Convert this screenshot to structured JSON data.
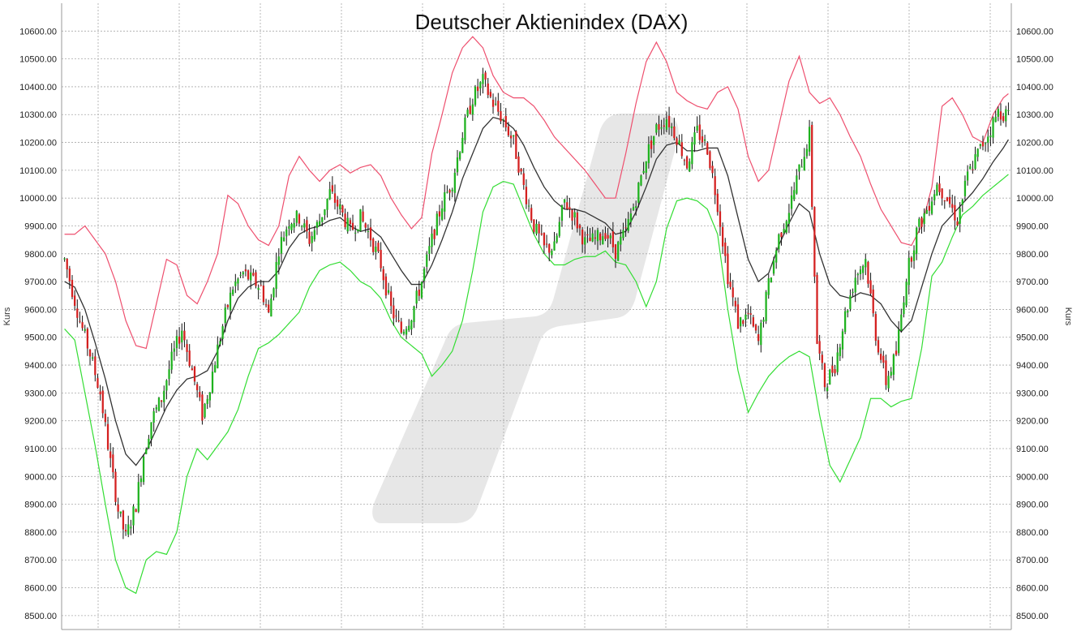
{
  "chart_data": {
    "type": "candlestick",
    "title": "Deutscher Aktienindex (DAX)",
    "ylabel_left": "Kurs",
    "ylabel_right": "Kurs",
    "ylim": [
      8450,
      10700
    ],
    "yticks": [
      "8500.00",
      "8600.00",
      "8700.00",
      "8800.00",
      "8900.00",
      "9000.00",
      "9100.00",
      "9200.00",
      "9300.00",
      "9400.00",
      "9500.00",
      "9600.00",
      "9700.00",
      "9800.00",
      "9900.00",
      "10000.00",
      "10100.00",
      "10200.00",
      "10300.00",
      "10400.00",
      "10500.00",
      "10600.00"
    ],
    "grid": true,
    "colors": {
      "up": "#1fb21f",
      "down": "#d42020",
      "wick": "#111111",
      "upper_band": "#ee4f6e",
      "middle_band": "#333333",
      "lower_band": "#33dd33",
      "grid": "#a9a9a9",
      "watermark": "#e7e7e7"
    },
    "anchors": [
      [
        0,
        9780
      ],
      [
        6,
        9560
      ],
      [
        10,
        9440
      ],
      [
        14,
        9300
      ],
      [
        18,
        9050
      ],
      [
        21,
        8880
      ],
      [
        24,
        8780
      ],
      [
        28,
        8900
      ],
      [
        31,
        9080
      ],
      [
        34,
        9200
      ],
      [
        38,
        9280
      ],
      [
        42,
        9420
      ],
      [
        46,
        9530
      ],
      [
        50,
        9380
      ],
      [
        54,
        9220
      ],
      [
        57,
        9330
      ],
      [
        60,
        9460
      ],
      [
        63,
        9580
      ],
      [
        66,
        9680
      ],
      [
        70,
        9730
      ],
      [
        74,
        9700
      ],
      [
        77,
        9680
      ],
      [
        80,
        9580
      ],
      [
        84,
        9820
      ],
      [
        88,
        9920
      ],
      [
        92,
        9930
      ],
      [
        96,
        9850
      ],
      [
        100,
        9920
      ],
      [
        104,
        10020
      ],
      [
        108,
        9960
      ],
      [
        112,
        9880
      ],
      [
        116,
        9930
      ],
      [
        120,
        9860
      ],
      [
        124,
        9760
      ],
      [
        128,
        9600
      ],
      [
        132,
        9520
      ],
      [
        136,
        9580
      ],
      [
        140,
        9700
      ],
      [
        144,
        9850
      ],
      [
        148,
        9980
      ],
      [
        152,
        10060
      ],
      [
        156,
        10230
      ],
      [
        160,
        10360
      ],
      [
        164,
        10420
      ],
      [
        168,
        10340
      ],
      [
        172,
        10280
      ],
      [
        176,
        10200
      ],
      [
        180,
        10040
      ],
      [
        184,
        9900
      ],
      [
        188,
        9820
      ],
      [
        192,
        9820
      ],
      [
        196,
        9990
      ],
      [
        200,
        9930
      ],
      [
        204,
        9840
      ],
      [
        208,
        9850
      ],
      [
        212,
        9880
      ],
      [
        216,
        9810
      ],
      [
        220,
        9880
      ],
      [
        224,
        10000
      ],
      [
        228,
        10150
      ],
      [
        232,
        10250
      ],
      [
        236,
        10290
      ],
      [
        240,
        10220
      ],
      [
        244,
        10120
      ],
      [
        248,
        10240
      ],
      [
        252,
        10180
      ],
      [
        256,
        9980
      ],
      [
        260,
        9720
      ],
      [
        264,
        9550
      ],
      [
        268,
        9580
      ],
      [
        272,
        9480
      ],
      [
        276,
        9690
      ],
      [
        280,
        9860
      ],
      [
        284,
        9960
      ],
      [
        288,
        10100
      ],
      [
        292,
        10230
      ],
      [
        295,
        9480
      ],
      [
        298,
        9330
      ],
      [
        302,
        9400
      ],
      [
        306,
        9580
      ],
      [
        310,
        9720
      ],
      [
        314,
        9780
      ],
      [
        318,
        9510
      ],
      [
        322,
        9340
      ],
      [
        326,
        9440
      ],
      [
        330,
        9720
      ],
      [
        334,
        9880
      ],
      [
        338,
        9960
      ],
      [
        342,
        10050
      ],
      [
        346,
        10000
      ],
      [
        350,
        9920
      ],
      [
        354,
        10080
      ],
      [
        358,
        10160
      ],
      [
        362,
        10230
      ],
      [
        366,
        10310
      ],
      [
        370,
        10300
      ]
    ],
    "upper_band": [
      [
        0,
        9870
      ],
      [
        4,
        9870
      ],
      [
        8,
        9900
      ],
      [
        12,
        9850
      ],
      [
        16,
        9800
      ],
      [
        20,
        9700
      ],
      [
        24,
        9560
      ],
      [
        28,
        9470
      ],
      [
        32,
        9460
      ],
      [
        36,
        9620
      ],
      [
        40,
        9780
      ],
      [
        44,
        9760
      ],
      [
        48,
        9650
      ],
      [
        52,
        9620
      ],
      [
        56,
        9700
      ],
      [
        60,
        9800
      ],
      [
        64,
        10010
      ],
      [
        68,
        9980
      ],
      [
        72,
        9900
      ],
      [
        76,
        9850
      ],
      [
        80,
        9830
      ],
      [
        84,
        9900
      ],
      [
        88,
        10080
      ],
      [
        92,
        10150
      ],
      [
        96,
        10100
      ],
      [
        100,
        10060
      ],
      [
        104,
        10100
      ],
      [
        108,
        10120
      ],
      [
        112,
        10090
      ],
      [
        116,
        10110
      ],
      [
        120,
        10120
      ],
      [
        124,
        10080
      ],
      [
        128,
        10000
      ],
      [
        132,
        9940
      ],
      [
        136,
        9890
      ],
      [
        140,
        9930
      ],
      [
        144,
        10160
      ],
      [
        148,
        10300
      ],
      [
        152,
        10450
      ],
      [
        156,
        10540
      ],
      [
        160,
        10580
      ],
      [
        164,
        10540
      ],
      [
        168,
        10440
      ],
      [
        172,
        10380
      ],
      [
        176,
        10360
      ],
      [
        180,
        10360
      ],
      [
        184,
        10330
      ],
      [
        188,
        10280
      ],
      [
        192,
        10220
      ],
      [
        196,
        10180
      ],
      [
        200,
        10140
      ],
      [
        204,
        10100
      ],
      [
        208,
        10050
      ],
      [
        212,
        10000
      ],
      [
        216,
        10000
      ],
      [
        220,
        10160
      ],
      [
        224,
        10340
      ],
      [
        228,
        10490
      ],
      [
        232,
        10560
      ],
      [
        236,
        10490
      ],
      [
        240,
        10380
      ],
      [
        244,
        10350
      ],
      [
        248,
        10330
      ],
      [
        252,
        10320
      ],
      [
        256,
        10380
      ],
      [
        260,
        10400
      ],
      [
        264,
        10320
      ],
      [
        268,
        10150
      ],
      [
        272,
        10060
      ],
      [
        276,
        10100
      ],
      [
        280,
        10260
      ],
      [
        284,
        10420
      ],
      [
        288,
        10510
      ],
      [
        292,
        10380
      ],
      [
        296,
        10340
      ],
      [
        300,
        10360
      ],
      [
        304,
        10300
      ],
      [
        308,
        10220
      ],
      [
        312,
        10150
      ],
      [
        316,
        10050
      ],
      [
        320,
        9960
      ],
      [
        324,
        9900
      ],
      [
        328,
        9840
      ],
      [
        332,
        9830
      ],
      [
        336,
        9900
      ],
      [
        340,
        10040
      ],
      [
        344,
        10330
      ],
      [
        348,
        10360
      ],
      [
        352,
        10300
      ],
      [
        356,
        10220
      ],
      [
        360,
        10200
      ],
      [
        364,
        10300
      ],
      [
        368,
        10360
      ],
      [
        372,
        10390
      ]
    ],
    "middle_band": [
      [
        0,
        9700
      ],
      [
        4,
        9680
      ],
      [
        8,
        9600
      ],
      [
        12,
        9480
      ],
      [
        16,
        9350
      ],
      [
        20,
        9200
      ],
      [
        24,
        9080
      ],
      [
        28,
        9040
      ],
      [
        32,
        9090
      ],
      [
        36,
        9170
      ],
      [
        40,
        9250
      ],
      [
        44,
        9310
      ],
      [
        48,
        9350
      ],
      [
        52,
        9360
      ],
      [
        56,
        9380
      ],
      [
        60,
        9450
      ],
      [
        64,
        9560
      ],
      [
        68,
        9640
      ],
      [
        72,
        9680
      ],
      [
        76,
        9700
      ],
      [
        80,
        9700
      ],
      [
        84,
        9740
      ],
      [
        88,
        9820
      ],
      [
        92,
        9870
      ],
      [
        96,
        9890
      ],
      [
        100,
        9900
      ],
      [
        104,
        9920
      ],
      [
        108,
        9930
      ],
      [
        112,
        9900
      ],
      [
        116,
        9880
      ],
      [
        120,
        9890
      ],
      [
        124,
        9860
      ],
      [
        128,
        9800
      ],
      [
        132,
        9740
      ],
      [
        136,
        9690
      ],
      [
        140,
        9690
      ],
      [
        144,
        9760
      ],
      [
        148,
        9850
      ],
      [
        152,
        9950
      ],
      [
        156,
        10070
      ],
      [
        160,
        10160
      ],
      [
        164,
        10250
      ],
      [
        168,
        10290
      ],
      [
        172,
        10280
      ],
      [
        176,
        10250
      ],
      [
        180,
        10190
      ],
      [
        184,
        10110
      ],
      [
        188,
        10040
      ],
      [
        192,
        9990
      ],
      [
        196,
        9960
      ],
      [
        200,
        9960
      ],
      [
        204,
        9950
      ],
      [
        208,
        9930
      ],
      [
        212,
        9910
      ],
      [
        216,
        9870
      ],
      [
        220,
        9880
      ],
      [
        224,
        9950
      ],
      [
        228,
        10040
      ],
      [
        232,
        10140
      ],
      [
        236,
        10190
      ],
      [
        240,
        10200
      ],
      [
        244,
        10170
      ],
      [
        248,
        10170
      ],
      [
        252,
        10180
      ],
      [
        256,
        10180
      ],
      [
        260,
        10080
      ],
      [
        264,
        9930
      ],
      [
        268,
        9780
      ],
      [
        272,
        9700
      ],
      [
        276,
        9730
      ],
      [
        280,
        9830
      ],
      [
        284,
        9910
      ],
      [
        288,
        9980
      ],
      [
        292,
        9950
      ],
      [
        296,
        9800
      ],
      [
        300,
        9690
      ],
      [
        304,
        9650
      ],
      [
        308,
        9640
      ],
      [
        312,
        9660
      ],
      [
        316,
        9650
      ],
      [
        320,
        9620
      ],
      [
        324,
        9560
      ],
      [
        328,
        9520
      ],
      [
        332,
        9560
      ],
      [
        336,
        9680
      ],
      [
        340,
        9800
      ],
      [
        344,
        9900
      ],
      [
        348,
        9940
      ],
      [
        352,
        9980
      ],
      [
        356,
        10020
      ],
      [
        360,
        10070
      ],
      [
        364,
        10130
      ],
      [
        368,
        10180
      ],
      [
        372,
        10240
      ]
    ],
    "lower_band": [
      [
        0,
        9530
      ],
      [
        4,
        9490
      ],
      [
        8,
        9300
      ],
      [
        12,
        9110
      ],
      [
        16,
        8900
      ],
      [
        20,
        8700
      ],
      [
        24,
        8600
      ],
      [
        28,
        8580
      ],
      [
        32,
        8700
      ],
      [
        36,
        8730
      ],
      [
        40,
        8720
      ],
      [
        44,
        8800
      ],
      [
        48,
        9000
      ],
      [
        52,
        9100
      ],
      [
        56,
        9060
      ],
      [
        60,
        9110
      ],
      [
        64,
        9160
      ],
      [
        68,
        9240
      ],
      [
        72,
        9360
      ],
      [
        76,
        9460
      ],
      [
        80,
        9480
      ],
      [
        84,
        9510
      ],
      [
        88,
        9550
      ],
      [
        92,
        9590
      ],
      [
        96,
        9680
      ],
      [
        100,
        9740
      ],
      [
        104,
        9760
      ],
      [
        108,
        9770
      ],
      [
        112,
        9740
      ],
      [
        116,
        9700
      ],
      [
        120,
        9680
      ],
      [
        124,
        9640
      ],
      [
        128,
        9560
      ],
      [
        132,
        9500
      ],
      [
        136,
        9470
      ],
      [
        140,
        9440
      ],
      [
        144,
        9360
      ],
      [
        148,
        9400
      ],
      [
        152,
        9450
      ],
      [
        156,
        9560
      ],
      [
        160,
        9740
      ],
      [
        164,
        9950
      ],
      [
        168,
        10040
      ],
      [
        172,
        10060
      ],
      [
        176,
        10050
      ],
      [
        180,
        9960
      ],
      [
        184,
        9870
      ],
      [
        188,
        9800
      ],
      [
        192,
        9760
      ],
      [
        196,
        9760
      ],
      [
        200,
        9780
      ],
      [
        204,
        9790
      ],
      [
        208,
        9790
      ],
      [
        212,
        9810
      ],
      [
        216,
        9770
      ],
      [
        220,
        9760
      ],
      [
        224,
        9700
      ],
      [
        228,
        9610
      ],
      [
        232,
        9700
      ],
      [
        236,
        9890
      ],
      [
        240,
        9990
      ],
      [
        244,
        10000
      ],
      [
        248,
        9990
      ],
      [
        252,
        9960
      ],
      [
        256,
        9870
      ],
      [
        260,
        9600
      ],
      [
        264,
        9380
      ],
      [
        268,
        9230
      ],
      [
        272,
        9300
      ],
      [
        276,
        9360
      ],
      [
        280,
        9400
      ],
      [
        284,
        9430
      ],
      [
        288,
        9450
      ],
      [
        292,
        9430
      ],
      [
        296,
        9220
      ],
      [
        300,
        9040
      ],
      [
        304,
        8980
      ],
      [
        308,
        9060
      ],
      [
        312,
        9140
      ],
      [
        316,
        9280
      ],
      [
        320,
        9280
      ],
      [
        324,
        9250
      ],
      [
        328,
        9270
      ],
      [
        332,
        9280
      ],
      [
        336,
        9460
      ],
      [
        340,
        9720
      ],
      [
        344,
        9770
      ],
      [
        348,
        9860
      ],
      [
        352,
        9940
      ],
      [
        356,
        9970
      ],
      [
        360,
        10010
      ],
      [
        364,
        10040
      ],
      [
        368,
        10070
      ],
      [
        372,
        10100
      ]
    ]
  }
}
